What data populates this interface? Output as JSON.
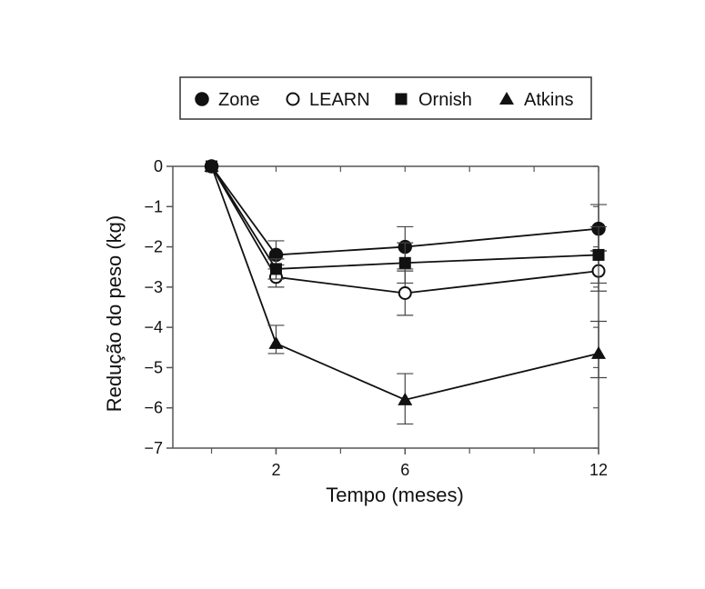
{
  "chart_data": {
    "type": "line",
    "xlabel": "Tempo (meses)",
    "ylabel": "Redução do peso (kg)",
    "x_ticks": [
      2,
      6,
      12
    ],
    "x_tick_labels": [
      "2",
      "6",
      "12"
    ],
    "x_minor_ticks": [
      0,
      2,
      4,
      6,
      8,
      10,
      12
    ],
    "y_ticks": [
      0,
      -1,
      -2,
      -3,
      -4,
      -5,
      -6,
      -7
    ],
    "y_tick_labels": [
      "0",
      "−1",
      "−2",
      "−3",
      "−4",
      "−5",
      "−6",
      "−7"
    ],
    "xlim": [
      -1.2,
      12
    ],
    "ylim": [
      -7,
      0
    ],
    "grid": false,
    "legend": "top",
    "series": [
      {
        "name": "Zone",
        "marker": "circle-filled",
        "x": [
          0,
          2,
          6,
          12
        ],
        "y": [
          0,
          -2.2,
          -2.0,
          -1.55
        ],
        "err_low": [
          0,
          -2.55,
          -2.55,
          -2.1
        ],
        "err_high": [
          0,
          -1.85,
          -1.5,
          -0.95
        ]
      },
      {
        "name": "LEARN",
        "marker": "circle-open",
        "x": [
          0,
          2,
          6,
          12
        ],
        "y": [
          0,
          -2.75,
          -3.15,
          -2.6
        ],
        "err_low": [
          0,
          -3.0,
          -3.7,
          -3.1
        ],
        "err_high": [
          0,
          -2.45,
          -2.6,
          -2.1
        ]
      },
      {
        "name": "Ornish",
        "marker": "square-filled",
        "x": [
          0,
          2,
          6,
          12
        ],
        "y": [
          0,
          -2.55,
          -2.4,
          -2.2
        ],
        "err_low": [
          0,
          -2.8,
          -2.9,
          -2.9
        ],
        "err_high": [
          0,
          -2.3,
          -1.9,
          -1.5
        ]
      },
      {
        "name": "Atkins",
        "marker": "triangle-filled",
        "x": [
          0,
          2,
          6,
          12
        ],
        "y": [
          0,
          -4.4,
          -5.8,
          -4.65
        ],
        "err_low": [
          0,
          -4.65,
          -6.4,
          -5.25
        ],
        "err_high": [
          0,
          -3.95,
          -5.15,
          -3.85
        ]
      }
    ]
  }
}
